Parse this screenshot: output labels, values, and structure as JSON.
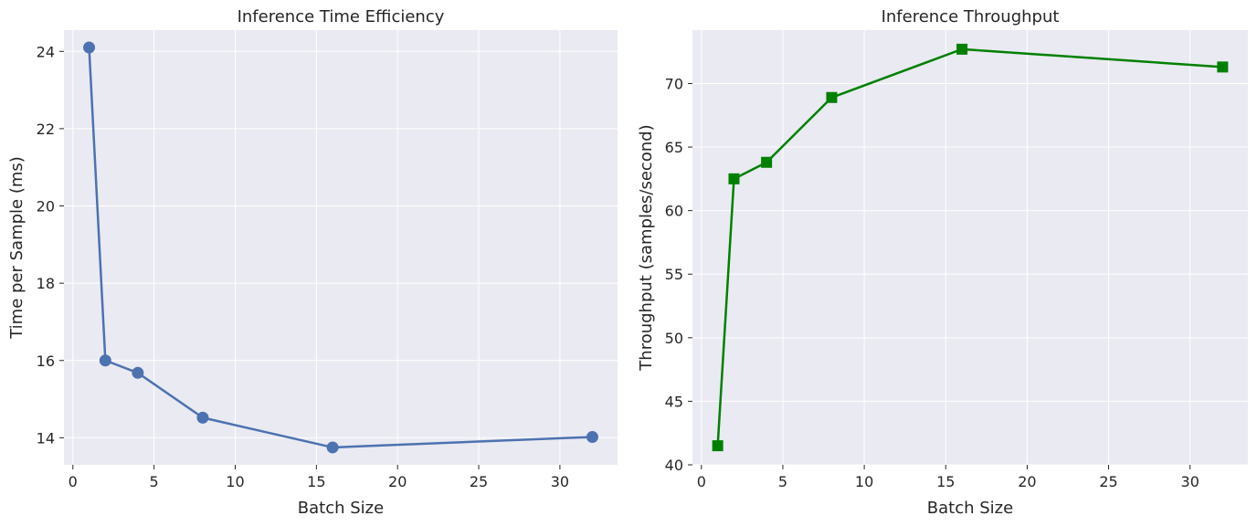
{
  "chart_data": [
    {
      "type": "line",
      "title": "Inference Time Efficiency",
      "xlabel": "Batch Size",
      "ylabel": "Time per Sample (ms)",
      "x": [
        1,
        2,
        4,
        8,
        16,
        32
      ],
      "series": [
        {
          "values": [
            24.1,
            16.0,
            15.68,
            14.52,
            13.75,
            14.02
          ],
          "color": "#4c72b0",
          "marker": "circle"
        }
      ],
      "xlim": [
        -0.55,
        33.55
      ],
      "ylim": [
        13.3,
        24.55
      ],
      "xticks": [
        0,
        5,
        10,
        15,
        20,
        25,
        30
      ],
      "yticks": [
        14,
        16,
        18,
        20,
        22,
        24
      ],
      "grid": true
    },
    {
      "type": "line",
      "title": "Inference Throughput",
      "xlabel": "Batch Size",
      "ylabel": "Throughput (samples/second)",
      "x": [
        1,
        2,
        4,
        8,
        16,
        32
      ],
      "series": [
        {
          "values": [
            41.5,
            62.5,
            63.8,
            68.9,
            72.7,
            71.3
          ],
          "color": "#008000",
          "marker": "square"
        }
      ],
      "xlim": [
        -0.55,
        33.55
      ],
      "ylim": [
        40.0,
        74.2
      ],
      "xticks": [
        0,
        5,
        10,
        15,
        20,
        25,
        30
      ],
      "yticks": [
        40,
        45,
        50,
        55,
        60,
        65,
        70
      ],
      "grid": true
    }
  ]
}
